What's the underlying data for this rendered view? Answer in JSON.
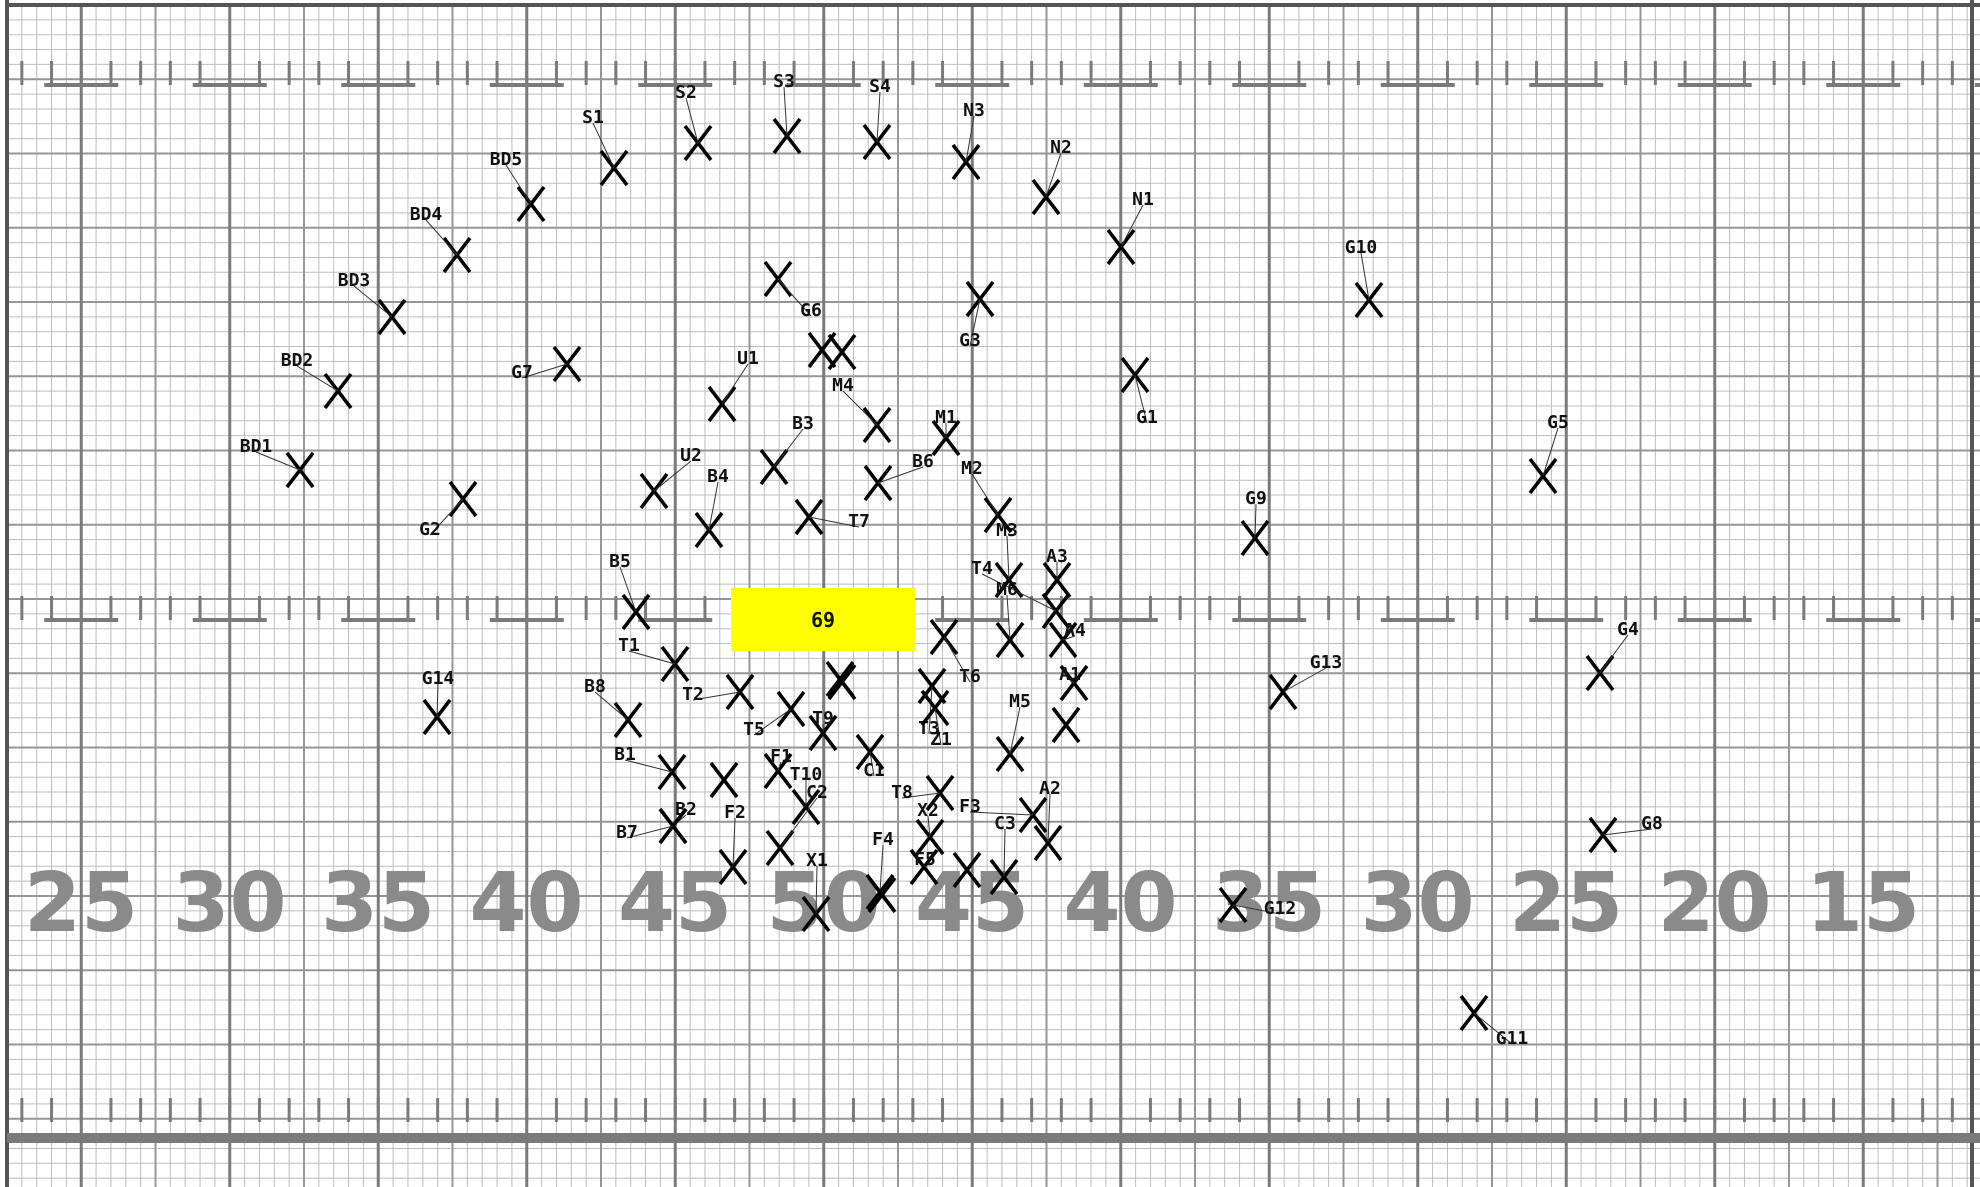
{
  "field": {
    "yard_numbers": [
      "25",
      "30",
      "35",
      "40",
      "45",
      "50",
      "45",
      "40",
      "35",
      "30",
      "25",
      "20",
      "15"
    ],
    "colors": {
      "grid_minor": "#bdbdbd",
      "grid_major": "#7a7a7a",
      "yard_text": "#8a8a8a",
      "marker": "#000000",
      "current_box": "#ffff00"
    }
  },
  "current_set": {
    "label": "69"
  },
  "markers": [
    {
      "label": "S1"
    },
    {
      "label": "S2"
    },
    {
      "label": "S3"
    },
    {
      "label": "S4"
    },
    {
      "label": "N3"
    },
    {
      "label": "N2"
    },
    {
      "label": "N1"
    },
    {
      "label": "BD5"
    },
    {
      "label": "BD4"
    },
    {
      "label": "BD3"
    },
    {
      "label": "BD2"
    },
    {
      "label": "BD1"
    },
    {
      "label": "G10"
    },
    {
      "label": "G6"
    },
    {
      "label": "G3"
    },
    {
      "label": "B3"
    },
    {
      "label": "G7"
    },
    {
      "label": "U1"
    },
    {
      "label": "M4"
    },
    {
      "label": "G1"
    },
    {
      "label": "M1"
    },
    {
      "label": "G5"
    },
    {
      "label": "U2"
    },
    {
      "label": "B6"
    },
    {
      "label": "B4"
    },
    {
      "label": "M2"
    },
    {
      "label": "G9"
    },
    {
      "label": "G2"
    },
    {
      "label": "T7"
    },
    {
      "label": "M3"
    },
    {
      "label": "A3"
    },
    {
      "label": "T4"
    },
    {
      "label": "B5"
    },
    {
      "label": "M6"
    },
    {
      "label": "A4"
    },
    {
      "label": "G4"
    },
    {
      "label": "T1"
    },
    {
      "label": "G13"
    },
    {
      "label": "T6"
    },
    {
      "label": "A1"
    },
    {
      "label": "G14"
    },
    {
      "label": "B8"
    },
    {
      "label": "T2"
    },
    {
      "label": "M5"
    },
    {
      "label": "T5"
    },
    {
      "label": "T9"
    },
    {
      "label": "T3"
    },
    {
      "label": "Z1"
    },
    {
      "label": "B1"
    },
    {
      "label": "F1"
    },
    {
      "label": "C1"
    },
    {
      "label": "T10"
    },
    {
      "label": "C2"
    },
    {
      "label": "T8"
    },
    {
      "label": "F3"
    },
    {
      "label": "A2"
    },
    {
      "label": "B2"
    },
    {
      "label": "F2"
    },
    {
      "label": "X2"
    },
    {
      "label": "C3"
    },
    {
      "label": "G8"
    },
    {
      "label": "B7"
    },
    {
      "label": "F4"
    },
    {
      "label": "F5"
    },
    {
      "label": "X1"
    },
    {
      "label": "G12"
    },
    {
      "label": "G11"
    },
    {
      "label": ""
    },
    {
      "label": ""
    },
    {
      "label": ""
    },
    {
      "label": ""
    },
    {
      "label": ""
    },
    {
      "label": ""
    },
    {
      "label": ""
    },
    {
      "label": ""
    }
  ]
}
